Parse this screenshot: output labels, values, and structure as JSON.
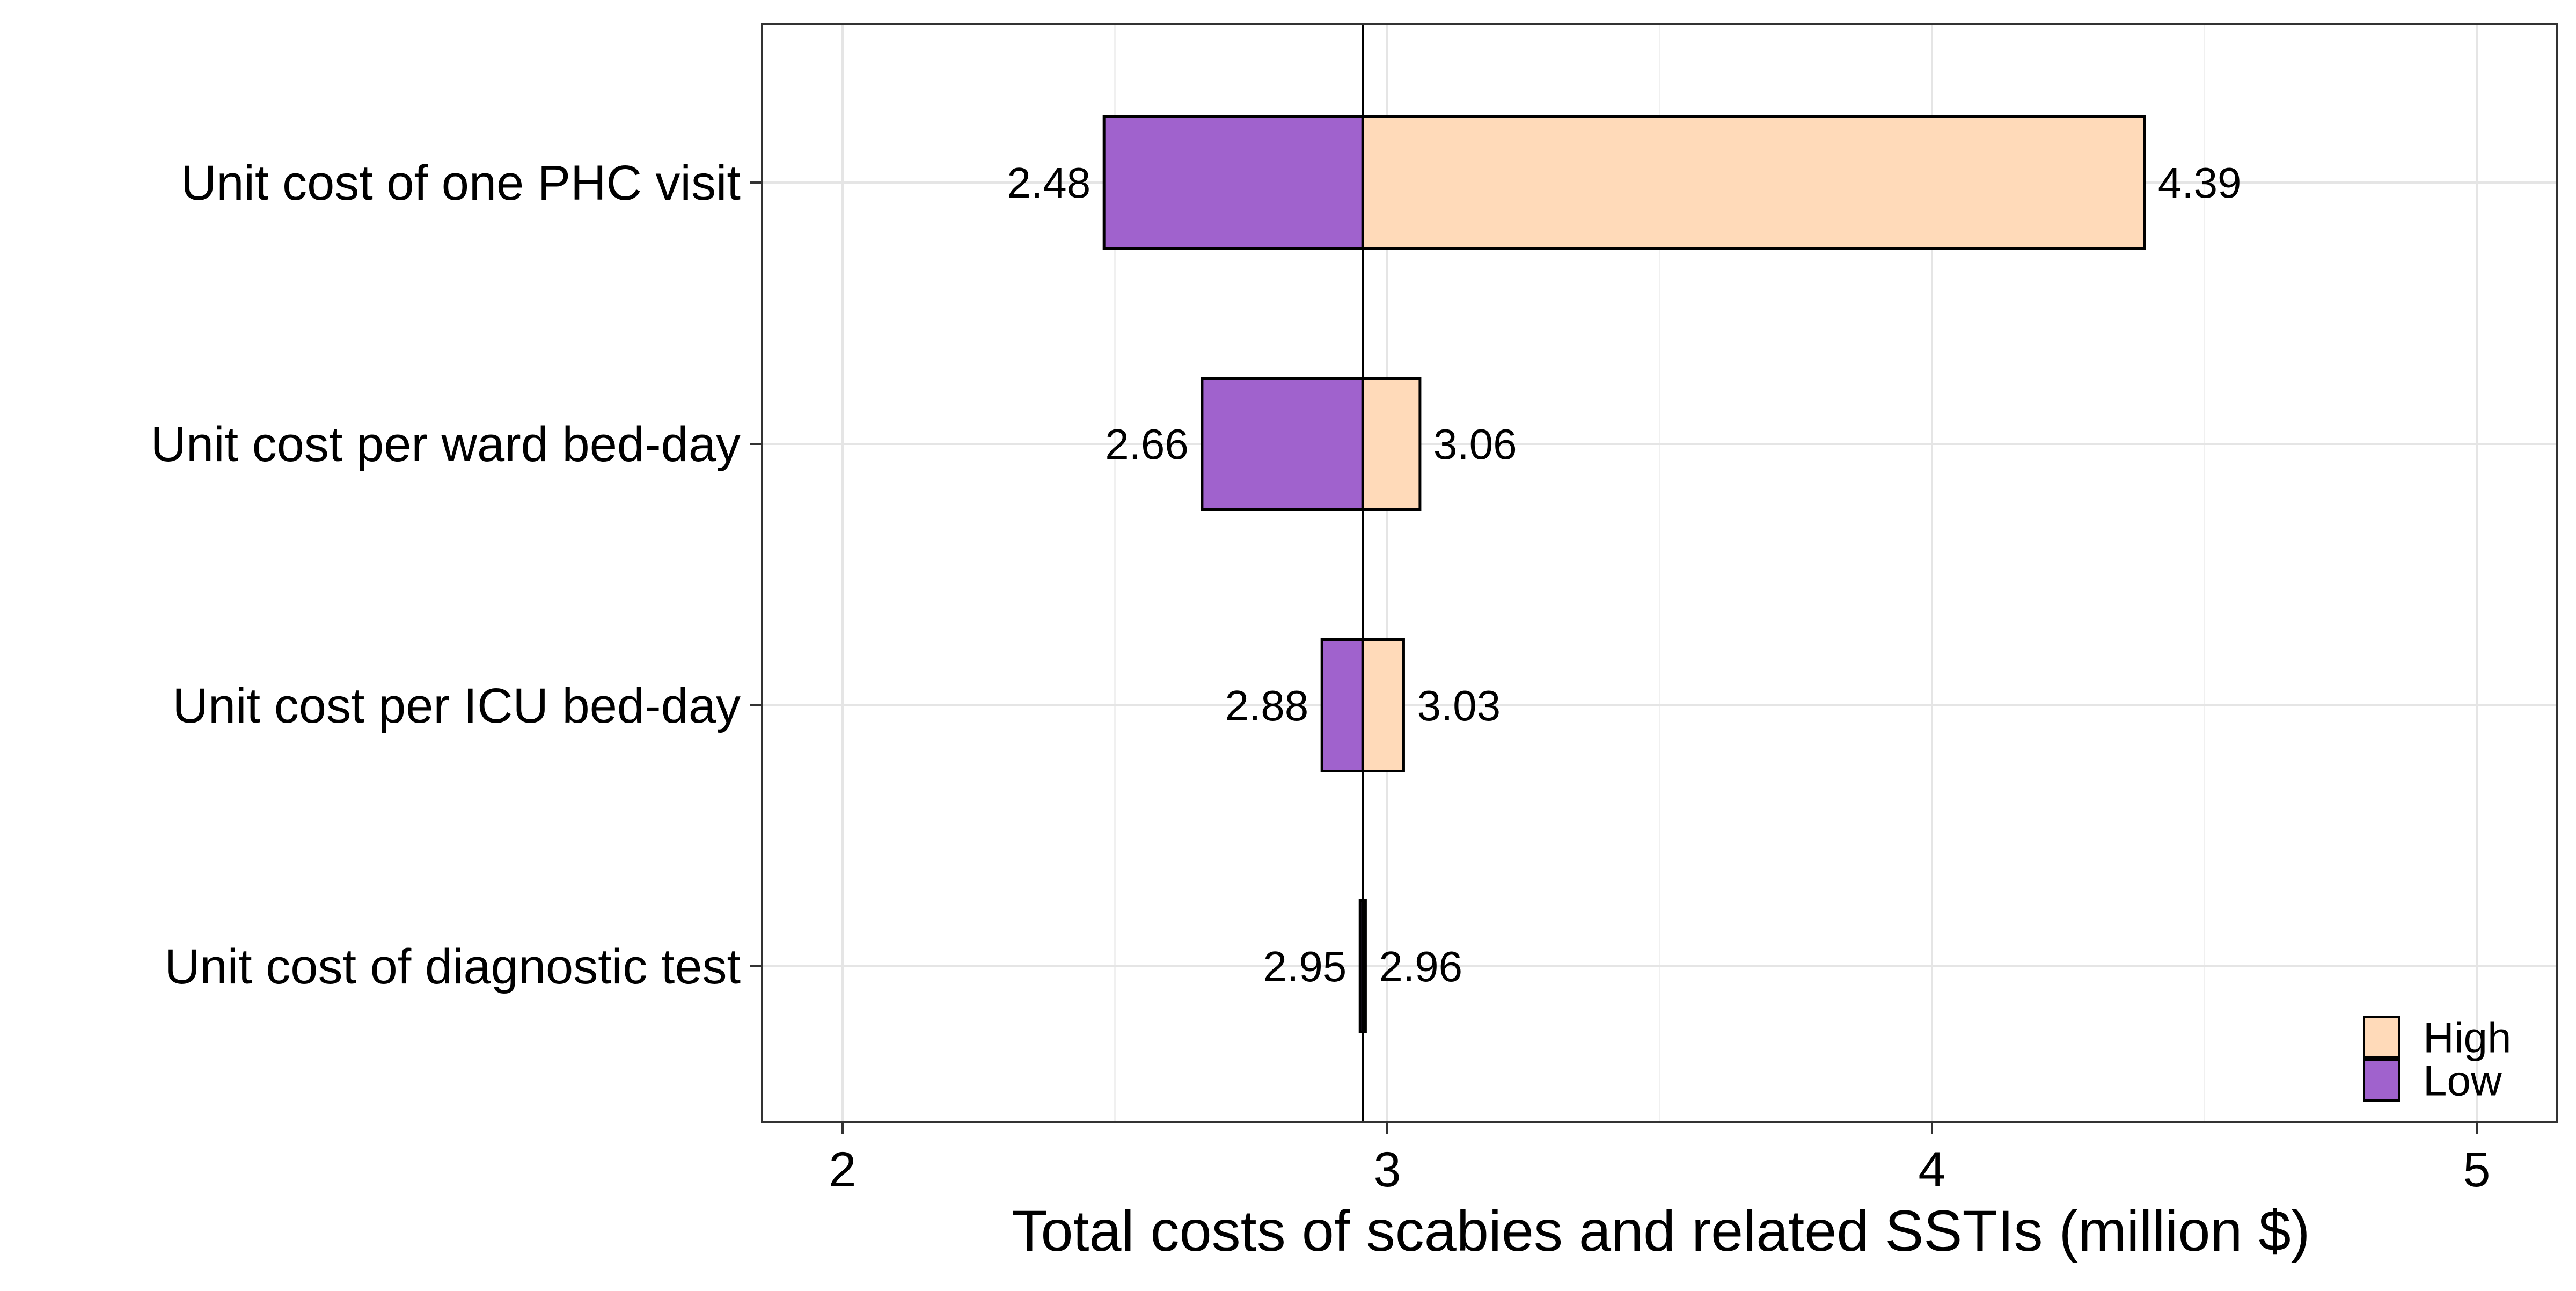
{
  "chart_data": {
    "type": "bar",
    "subtype": "tornado",
    "title": "",
    "xlabel": "Total costs of scabies and related SSTIs (million $)",
    "ylabel": "",
    "xlim": [
      1.85,
      5.15
    ],
    "xticks": [
      2,
      3,
      4,
      5
    ],
    "xtick_labels": [
      "2",
      "3",
      "4",
      "5"
    ],
    "baseline": 2.955,
    "grid": true,
    "legend": {
      "position": "bottom-right",
      "entries": [
        {
          "name": "High",
          "color": "#FFDAB9"
        },
        {
          "name": "Low",
          "color": "#A062CD"
        }
      ]
    },
    "categories": [
      "Unit cost of one PHC visit",
      "Unit cost per ward bed-day",
      "Unit cost per ICU bed-day",
      "Unit cost of diagnostic test"
    ],
    "series": [
      {
        "name": "Low",
        "values": [
          2.48,
          2.66,
          2.88,
          2.95
        ],
        "labels": [
          "2.48",
          "2.66",
          "2.88",
          "2.95"
        ]
      },
      {
        "name": "High",
        "values": [
          4.39,
          3.06,
          3.03,
          2.96
        ],
        "labels": [
          "4.39",
          "3.06",
          "3.03",
          "2.96"
        ]
      }
    ]
  }
}
